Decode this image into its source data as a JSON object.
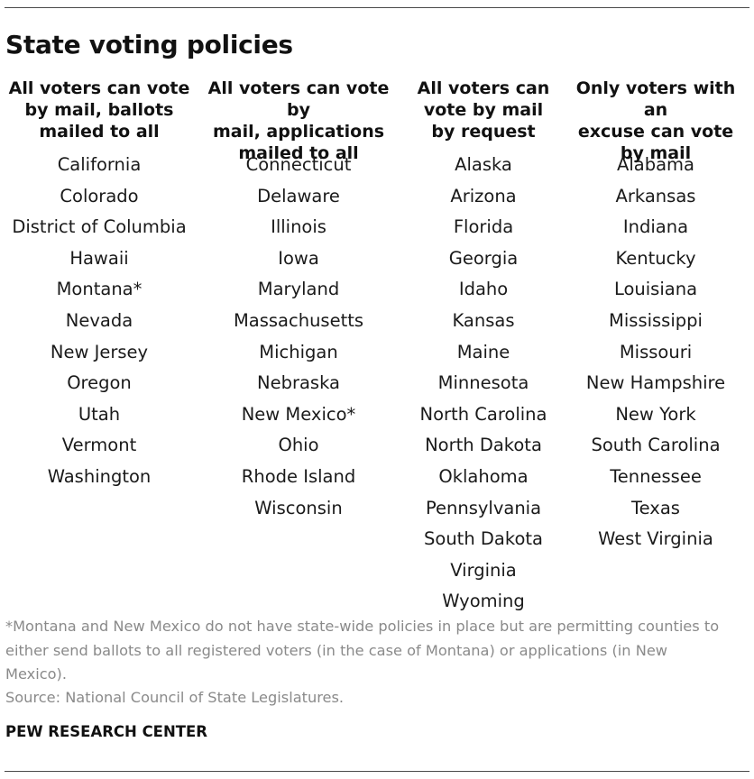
{
  "title": "State voting policies",
  "columns": [
    {
      "header": "All voters can vote\nby mail, ballots\nmailed to all",
      "states": [
        "California",
        "Colorado",
        "District of Columbia",
        "Hawaii",
        "Montana*",
        "Nevada",
        "New Jersey",
        "Oregon",
        "Utah",
        "Vermont",
        "Washington"
      ]
    },
    {
      "header": "All voters can vote by\nmail, applications\nmailed to all",
      "states": [
        "Connecticut",
        "Delaware",
        "Illinois",
        "Iowa",
        "Maryland",
        "Massachusetts",
        "Michigan",
        "Nebraska",
        "New Mexico*",
        "Ohio",
        "Rhode Island",
        "Wisconsin"
      ]
    },
    {
      "header": "All voters can\nvote by mail\nby request",
      "states": [
        "Alaska",
        "Arizona",
        "Florida",
        "Georgia",
        "Idaho",
        "Kansas",
        "Maine",
        "Minnesota",
        "North Carolina",
        "North Dakota",
        "Oklahoma",
        "Pennsylvania",
        "South Dakota",
        "Virginia",
        "Wyoming"
      ]
    },
    {
      "header": "Only voters with an\nexcuse can vote\nby mail",
      "states": [
        "Alabama",
        "Arkansas",
        "Indiana",
        "Kentucky",
        "Louisiana",
        "Mississippi",
        "Missouri",
        "New Hampshire",
        "New York",
        "South Carolina",
        "Tennessee",
        "Texas",
        "West Virginia"
      ]
    }
  ],
  "footnote": "*Montana and New Mexico do not have state-wide policies in place but are permitting counties to either send ballots to all registered voters (in the case of Montana) or applications (in New Mexico).",
  "source": "Source: National Council of State Legislatures.",
  "brand": "PEW RESEARCH CENTER"
}
